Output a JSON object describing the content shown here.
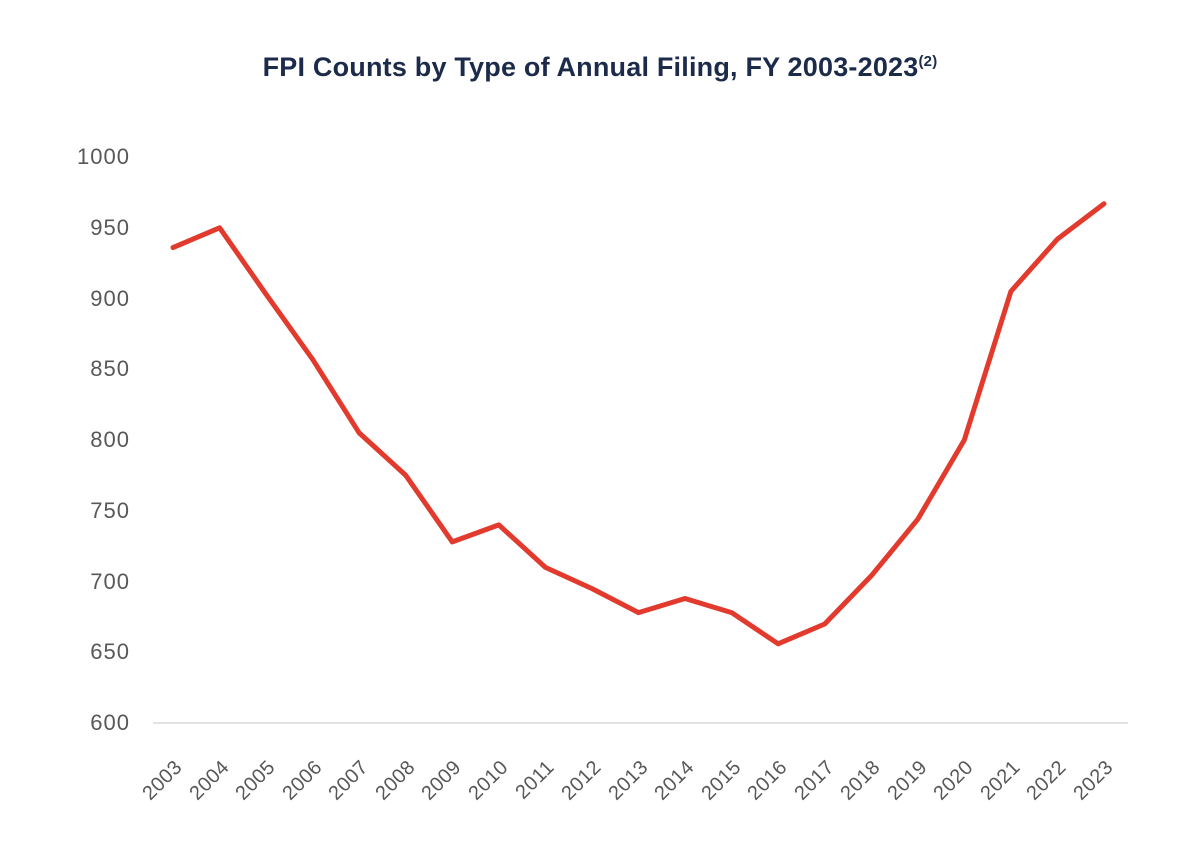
{
  "chart_data": {
    "type": "line",
    "title": "FPI Counts by Type of Annual Filing, FY 2003-2023",
    "title_superscript": "(2)",
    "categories": [
      "2003",
      "2004",
      "2005",
      "2006",
      "2007",
      "2008",
      "2009",
      "2010",
      "2011",
      "2012",
      "2013",
      "2014",
      "2015",
      "2016",
      "2017",
      "2018",
      "2019",
      "2020",
      "2021",
      "2022",
      "2023"
    ],
    "values": [
      936,
      950,
      903,
      857,
      805,
      775,
      728,
      740,
      710,
      695,
      678,
      688,
      678,
      656,
      670,
      704,
      744,
      800,
      905,
      942,
      967
    ],
    "ylim": [
      600,
      1000
    ],
    "yticks": [
      1000,
      950,
      900,
      850,
      800,
      750,
      700,
      650,
      600
    ],
    "xlabel": "",
    "ylabel": "",
    "legend": "none",
    "grid": "baseline-only"
  },
  "colors": {
    "line": "#e23b2e",
    "title": "#1c2b4a",
    "axis_labels": "#58585a",
    "gridline": "#d9d9d9"
  }
}
